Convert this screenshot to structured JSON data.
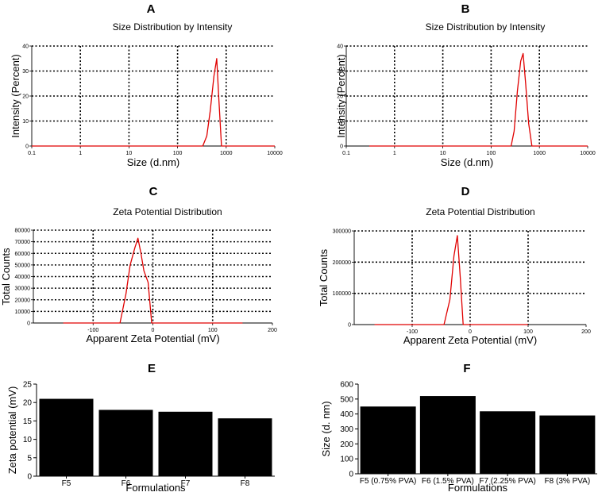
{
  "chart_data": [
    {
      "panel": "A",
      "type": "line",
      "title": "Size Distribution by Intensity",
      "xlabel": "Size (d.nm)",
      "ylabel": "Intensity (Percent)",
      "xscale": "log",
      "xlim": [
        0.1,
        10000
      ],
      "ylim": [
        0,
        40
      ],
      "x_ticks": [
        "0.1",
        "1",
        "10",
        "100",
        "1000",
        "10000"
      ],
      "y_ticks": [
        "0",
        "10",
        "20",
        "30",
        "40"
      ],
      "grid": true,
      "series": [
        {
          "name": "Intensity",
          "color": "#e00000",
          "x": [
            0.1,
            330,
            400,
            470,
            560,
            640,
            710,
            800,
            10000
          ],
          "y": [
            0,
            0,
            4,
            14,
            28,
            35,
            18,
            0,
            0
          ]
        }
      ]
    },
    {
      "panel": "B",
      "type": "line",
      "title": "Size Distribution by Intensity",
      "xlabel": "Size (d.nm)",
      "ylabel": "Intensity (Percent)",
      "xscale": "log",
      "xlim": [
        0.1,
        10000
      ],
      "ylim": [
        0,
        40
      ],
      "x_ticks": [
        "0.1",
        "1",
        "10",
        "100",
        "1000",
        "10000"
      ],
      "y_ticks": [
        "0",
        "10",
        "20",
        "30",
        "40"
      ],
      "grid": true,
      "series": [
        {
          "name": "Intensity",
          "color": "#e00000",
          "x": [
            0.3,
            260,
            300,
            350,
            410,
            460,
            520,
            600,
            700,
            10000
          ],
          "y": [
            0,
            0,
            6,
            22,
            34,
            37,
            25,
            9,
            0,
            0
          ]
        }
      ]
    },
    {
      "panel": "C",
      "type": "line",
      "title": "Zeta Potential Distribution",
      "xlabel": "Apparent Zeta Potential (mV)",
      "ylabel": "Total Counts",
      "xlim": [
        -200,
        200
      ],
      "ylim": [
        0,
        80000
      ],
      "x_ticks": [
        "-100",
        "0",
        "100",
        "200"
      ],
      "y_ticks": [
        "0",
        "10000",
        "20000",
        "30000",
        "40000",
        "50000",
        "60000",
        "70000",
        "80000"
      ],
      "grid": true,
      "series": [
        {
          "name": "Total Counts",
          "color": "#e00000",
          "x": [
            -150,
            -55,
            -45,
            -38,
            -30,
            -25,
            -20,
            -15,
            -8,
            -2,
            150
          ],
          "y": [
            0,
            0,
            25000,
            50000,
            65000,
            73000,
            60000,
            45000,
            35000,
            0,
            0
          ]
        }
      ]
    },
    {
      "panel": "D",
      "type": "line",
      "title": "Zeta Potential Distribution",
      "xlabel": "Apparent Zeta Potential (mV)",
      "ylabel": "Total Counts",
      "xlim": [
        -200,
        200
      ],
      "ylim": [
        0,
        300000
      ],
      "x_ticks": [
        "-100",
        "0",
        "100",
        "200"
      ],
      "y_ticks": [
        "0",
        "100000",
        "200000",
        "300000"
      ],
      "grid": true,
      "series": [
        {
          "name": "Total Counts",
          "color": "#e00000",
          "x": [
            -165,
            -45,
            -35,
            -28,
            -22,
            -17,
            -12,
            100
          ],
          "y": [
            0,
            0,
            80000,
            220000,
            285000,
            150000,
            0,
            0
          ]
        }
      ]
    },
    {
      "panel": "E",
      "type": "bar",
      "title": "",
      "categories": [
        "F5",
        "F6",
        "F7",
        "F8"
      ],
      "values": [
        21,
        18,
        17.5,
        15.7
      ],
      "xlabel": "Formulations",
      "ylabel": "Zeta potential (mV)",
      "ylim": [
        0,
        25
      ],
      "y_ticks": [
        "0",
        "5",
        "10",
        "15",
        "20",
        "25"
      ],
      "color": "#000000"
    },
    {
      "panel": "F",
      "type": "bar",
      "title": "",
      "categories": [
        "F5 (0.75% PVA)",
        "F6 (1.5% PVA)",
        "F7 (2.25% PVA)",
        "F8 (3% PVA)"
      ],
      "values": [
        450,
        520,
        418,
        390
      ],
      "xlabel": "Formulations",
      "ylabel": "Size (d. nm)",
      "ylim": [
        0,
        600
      ],
      "y_ticks": [
        "0",
        "100",
        "200",
        "300",
        "400",
        "500",
        "600"
      ],
      "color": "#000000"
    }
  ]
}
